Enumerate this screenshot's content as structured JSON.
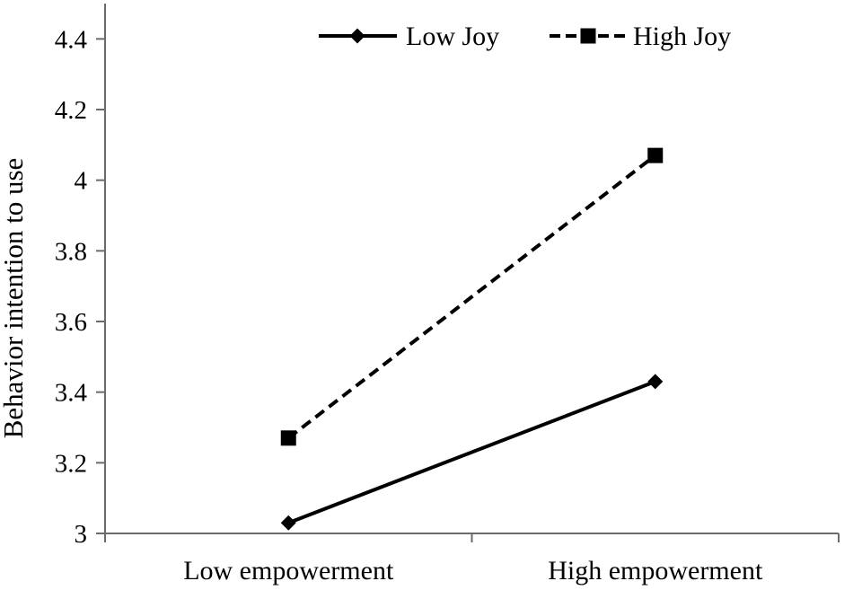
{
  "figure": {
    "background": "#ffffff",
    "text_color": "#000000",
    "axis_color": "#6b6b6b",
    "series_color": "#000000"
  },
  "chart_data": {
    "type": "line",
    "title": "",
    "xlabel": "",
    "ylabel": "Behavior intention to use",
    "categories": [
      "Low empowerment",
      "High empowerment"
    ],
    "series": [
      {
        "name": "Low Joy",
        "values": [
          3.03,
          3.43
        ],
        "line_style": "solid",
        "marker": "diamond"
      },
      {
        "name": "High Joy",
        "values": [
          3.27,
          4.07
        ],
        "line_style": "dashed",
        "marker": "square"
      }
    ],
    "ylim": [
      3,
      4.5
    ],
    "yticks": [
      3,
      3.2,
      3.4,
      3.6,
      3.8,
      4,
      4.2,
      4.4
    ],
    "ytick_labels": [
      "3",
      "3.2",
      "3.4",
      "3.6",
      "3.8",
      "4",
      "4.2",
      "4.4"
    ],
    "grid": false,
    "legend_position": "top"
  }
}
